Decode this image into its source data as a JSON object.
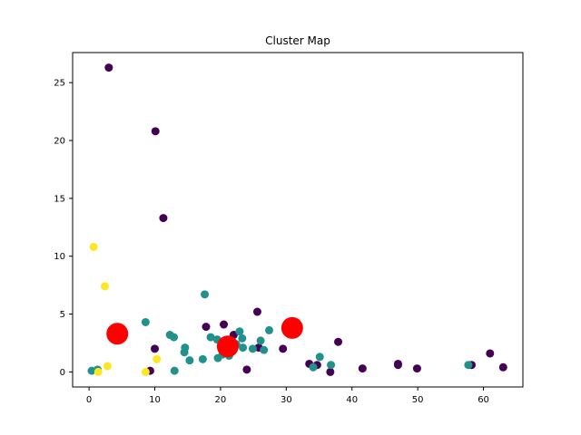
{
  "chart_data": {
    "type": "scatter",
    "title": "Cluster Map",
    "xlabel": "",
    "ylabel": "",
    "xlim": [
      -2.5,
      66
    ],
    "ylim": [
      -1.3,
      27.6
    ],
    "x_ticks": [
      0,
      10,
      20,
      30,
      40,
      50,
      60
    ],
    "y_ticks": [
      0,
      5,
      10,
      15,
      20,
      25
    ],
    "grid": false,
    "colors": {
      "cluster_0": "#440154",
      "cluster_1": "#21918c",
      "cluster_2": "#fde725",
      "centroid": "#ff0000"
    },
    "series": [
      {
        "cluster": 0,
        "points": [
          [
            3.0,
            26.3
          ],
          [
            10.1,
            20.8
          ],
          [
            11.3,
            13.3
          ],
          [
            25.6,
            5.2
          ],
          [
            17.8,
            3.9
          ],
          [
            20.5,
            4.1
          ],
          [
            22.0,
            3.2
          ],
          [
            10.0,
            2.0
          ],
          [
            9.3,
            0.1
          ],
          [
            24.0,
            0.2
          ],
          [
            25.8,
            2.1
          ],
          [
            29.5,
            2.0
          ],
          [
            33.5,
            0.7
          ],
          [
            34.7,
            0.6
          ],
          [
            36.7,
            0.0
          ],
          [
            37.9,
            2.6
          ],
          [
            41.6,
            0.3
          ],
          [
            47.0,
            0.7
          ],
          [
            47.0,
            0.6
          ],
          [
            49.9,
            0.3
          ],
          [
            58.2,
            0.6
          ],
          [
            61.0,
            1.6
          ],
          [
            63.0,
            0.4
          ]
        ]
      },
      {
        "cluster": 1,
        "points": [
          [
            0.4,
            0.1
          ],
          [
            1.3,
            0.2
          ],
          [
            8.6,
            4.3
          ],
          [
            12.3,
            3.2
          ],
          [
            12.9,
            3.0
          ],
          [
            13.0,
            0.1
          ],
          [
            14.6,
            2.1
          ],
          [
            14.5,
            1.7
          ],
          [
            15.3,
            1.0
          ],
          [
            17.3,
            1.1
          ],
          [
            17.6,
            6.7
          ],
          [
            18.5,
            3.0
          ],
          [
            19.5,
            2.8
          ],
          [
            19.6,
            1.2
          ],
          [
            20.3,
            1.5
          ],
          [
            21.3,
            1.4
          ],
          [
            22.4,
            2.4
          ],
          [
            22.9,
            3.5
          ],
          [
            23.3,
            2.9
          ],
          [
            23.4,
            2.1
          ],
          [
            24.9,
            2.0
          ],
          [
            26.1,
            2.7
          ],
          [
            26.6,
            1.9
          ],
          [
            27.4,
            3.6
          ],
          [
            34.1,
            0.4
          ],
          [
            35.1,
            1.3
          ],
          [
            36.8,
            0.6
          ],
          [
            57.7,
            0.6
          ]
        ]
      },
      {
        "cluster": 2,
        "points": [
          [
            0.7,
            10.8
          ],
          [
            2.4,
            7.4
          ],
          [
            2.8,
            0.5
          ],
          [
            1.4,
            0.0
          ],
          [
            8.6,
            0.0
          ],
          [
            10.3,
            1.1
          ]
        ]
      }
    ],
    "centroids": [
      [
        4.3,
        3.3
      ],
      [
        21.1,
        2.2
      ],
      [
        30.9,
        3.8
      ]
    ]
  }
}
